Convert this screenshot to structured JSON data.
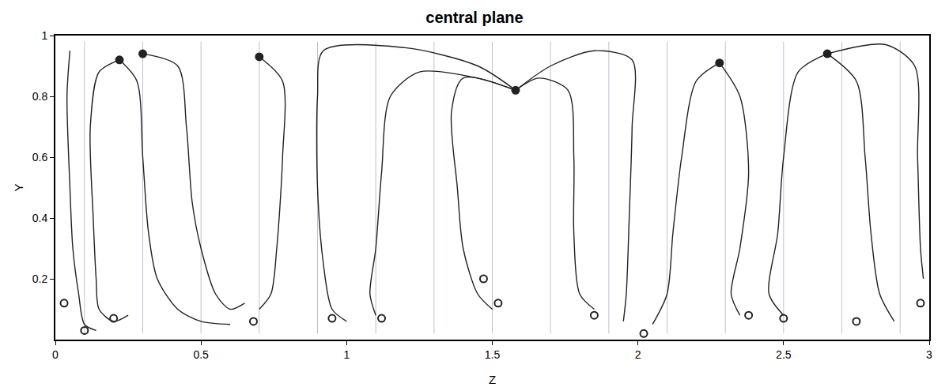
{
  "chart_data": {
    "type": "line",
    "title": "central plane",
    "x_label": "Z",
    "y_label": "Y",
    "xlim": [
      0,
      3
    ],
    "ylim": [
      0,
      1
    ],
    "xticks": [
      0,
      0.5,
      1,
      1.5,
      2,
      2.5,
      3
    ],
    "yticks": [
      0.2,
      0.4,
      0.6,
      0.8,
      1
    ],
    "grid": false,
    "series": [
      {
        "type": "line",
        "color": "#b8c4d0",
        "line_style": "solid",
        "x": [
          0.1,
          0.1,
          null,
          0.3,
          0.3,
          null,
          0.5,
          0.5,
          null,
          0.7,
          0.7,
          null,
          0.9,
          0.9,
          null,
          1.1,
          1.1,
          null,
          1.3,
          1.3,
          null,
          1.5,
          1.5,
          null,
          1.7,
          1.7,
          null,
          1.9,
          1.9,
          null,
          2.1,
          2.1,
          null,
          2.3,
          2.3,
          null,
          2.5,
          2.5,
          null,
          2.7,
          2.7,
          null,
          2.9,
          2.9
        ],
        "values": [
          0.02,
          0.98,
          null,
          0.02,
          0.98,
          null,
          0.02,
          0.98,
          null,
          0.02,
          0.98,
          null,
          0.02,
          0.98,
          null,
          0.02,
          0.98,
          null,
          0.02,
          0.98,
          null,
          0.02,
          0.98,
          null,
          0.02,
          0.98,
          null,
          0.02,
          0.98,
          null,
          0.02,
          0.98,
          null,
          0.02,
          0.98,
          null,
          0.02,
          0.98,
          null,
          0.02,
          0.98,
          null,
          0.02,
          0.98
        ]
      },
      {
        "type": "line",
        "color": "#222222",
        "line_style": "solid",
        "x": [
          0.22,
          0.15,
          0.12,
          0.13,
          0.14,
          0.15,
          0.2,
          0.25
        ],
        "values": [
          0.92,
          0.88,
          0.7,
          0.4,
          0.2,
          0.1,
          0.06,
          0.08
        ]
      },
      {
        "type": "line",
        "color": "#222222",
        "line_style": "solid",
        "x": [
          0.22,
          0.28,
          0.3,
          0.32,
          0.35,
          0.42,
          0.5,
          0.6
        ],
        "values": [
          0.92,
          0.85,
          0.6,
          0.35,
          0.2,
          0.1,
          0.06,
          0.05
        ]
      },
      {
        "type": "line",
        "color": "#222222",
        "line_style": "solid",
        "x": [
          0.3,
          0.42,
          0.45,
          0.47,
          0.5,
          0.55,
          0.6,
          0.65
        ],
        "values": [
          0.94,
          0.9,
          0.7,
          0.45,
          0.3,
          0.15,
          0.1,
          0.12
        ]
      },
      {
        "type": "line",
        "color": "#222222",
        "line_style": "solid",
        "x": [
          0.05,
          0.04,
          0.05,
          0.06,
          0.08,
          0.1,
          0.14
        ],
        "values": [
          0.95,
          0.8,
          0.5,
          0.3,
          0.15,
          0.05,
          0.03
        ]
      },
      {
        "type": "line",
        "color": "#222222",
        "line_style": "solid",
        "x": [
          0.7,
          0.78,
          0.78,
          0.76,
          0.74,
          0.7
        ],
        "values": [
          0.93,
          0.85,
          0.6,
          0.3,
          0.15,
          0.1
        ]
      },
      {
        "type": "line",
        "color": "#222222",
        "line_style": "solid",
        "x": [
          1.58,
          1.45,
          1.2,
          0.92,
          0.9,
          0.9,
          0.92,
          0.95,
          1.0
        ],
        "values": [
          0.82,
          0.9,
          0.96,
          0.95,
          0.8,
          0.5,
          0.25,
          0.1,
          0.06
        ]
      },
      {
        "type": "line",
        "color": "#222222",
        "line_style": "solid",
        "x": [
          1.58,
          1.45,
          1.25,
          1.15,
          1.12,
          1.1,
          1.08,
          1.1
        ],
        "values": [
          0.82,
          0.86,
          0.88,
          0.8,
          0.55,
          0.3,
          0.15,
          0.08
        ]
      },
      {
        "type": "line",
        "color": "#222222",
        "line_style": "solid",
        "x": [
          1.58,
          1.4,
          1.36,
          1.38,
          1.4,
          1.45,
          1.5
        ],
        "values": [
          0.82,
          0.86,
          0.75,
          0.5,
          0.3,
          0.15,
          0.1
        ]
      },
      {
        "type": "line",
        "color": "#222222",
        "line_style": "solid",
        "x": [
          1.58,
          1.7,
          1.85,
          1.98,
          1.98,
          1.97,
          1.96,
          1.95
        ],
        "values": [
          0.82,
          0.9,
          0.95,
          0.92,
          0.7,
          0.4,
          0.15,
          0.06
        ]
      },
      {
        "type": "line",
        "color": "#222222",
        "line_style": "solid",
        "x": [
          1.58,
          1.66,
          1.76,
          1.78,
          1.78,
          1.8,
          1.85
        ],
        "values": [
          0.82,
          0.86,
          0.82,
          0.6,
          0.35,
          0.15,
          0.1
        ]
      },
      {
        "type": "line",
        "color": "#222222",
        "line_style": "solid",
        "x": [
          2.28,
          2.2,
          2.15,
          2.12,
          2.1,
          2.05
        ],
        "values": [
          0.91,
          0.85,
          0.6,
          0.35,
          0.15,
          0.05
        ]
      },
      {
        "type": "line",
        "color": "#222222",
        "line_style": "solid",
        "x": [
          2.28,
          2.35,
          2.38,
          2.35,
          2.32,
          2.35
        ],
        "values": [
          0.91,
          0.8,
          0.55,
          0.3,
          0.15,
          0.08
        ]
      },
      {
        "type": "line",
        "color": "#222222",
        "line_style": "solid",
        "x": [
          2.65,
          2.55,
          2.5,
          2.48,
          2.45,
          2.5
        ],
        "values": [
          0.94,
          0.88,
          0.6,
          0.35,
          0.15,
          0.08
        ]
      },
      {
        "type": "line",
        "color": "#222222",
        "line_style": "solid",
        "x": [
          2.65,
          2.75,
          2.78,
          2.8,
          2.83,
          2.88
        ],
        "values": [
          0.94,
          0.85,
          0.6,
          0.35,
          0.15,
          0.06
        ]
      },
      {
        "type": "line",
        "color": "#222222",
        "line_style": "solid",
        "x": [
          2.65,
          2.85,
          2.95,
          2.96,
          2.97,
          2.98
        ],
        "values": [
          0.94,
          0.97,
          0.9,
          0.6,
          0.3,
          0.2
        ]
      },
      {
        "type": "scatter",
        "color": "#222222",
        "marker": "circle-open",
        "x": [
          0.03,
          0.1,
          0.2,
          0.68,
          0.95,
          1.12,
          1.52,
          1.47,
          1.85,
          2.02,
          2.38,
          2.5,
          2.75,
          2.97
        ],
        "values": [
          0.12,
          0.03,
          0.07,
          0.06,
          0.07,
          0.07,
          0.12,
          0.2,
          0.08,
          0.02,
          0.08,
          0.07,
          0.06,
          0.12
        ]
      },
      {
        "type": "scatter",
        "color": "#222222",
        "marker": "circle",
        "x": [
          0.22,
          0.3,
          0.7,
          1.58,
          2.28,
          2.65
        ],
        "values": [
          0.92,
          0.94,
          0.93,
          0.82,
          0.91,
          0.94
        ]
      }
    ]
  }
}
